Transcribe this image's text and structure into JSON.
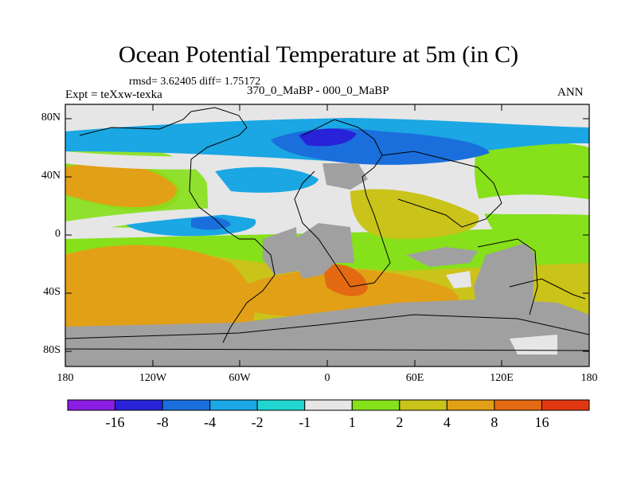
{
  "title": "Ocean Potential Temperature at 5m (in C)",
  "stats": "rmsd= 3.62405 diff= 1.75172",
  "experiment": "Expt = teXxw-texka",
  "difference": "370_0_MaBP - 000_0_MaBP",
  "season": "ANN",
  "map": {
    "projection": "cylindrical equidistant",
    "lon_range": [
      -180,
      180
    ],
    "lat_range": [
      -90,
      90
    ],
    "y_ticks": [
      "80N",
      "40N",
      "0",
      "40S",
      "80S"
    ],
    "x_ticks": [
      "180",
      "120W",
      "60W",
      "0",
      "60E",
      "120E",
      "180"
    ],
    "land_color": "#a0a0a0"
  },
  "colorbar": {
    "colors": [
      "#8c1de3",
      "#2822d9",
      "#1a6fdc",
      "#1aa7e3",
      "#20d6cf",
      "#e6e6e6",
      "#86e01a",
      "#c9c31a",
      "#e2a016",
      "#e36a12",
      "#e03810"
    ],
    "labels": [
      "-16",
      "-8",
      "-4",
      "-2",
      "-1",
      "1",
      "2",
      "4",
      "8",
      "16"
    ]
  }
}
